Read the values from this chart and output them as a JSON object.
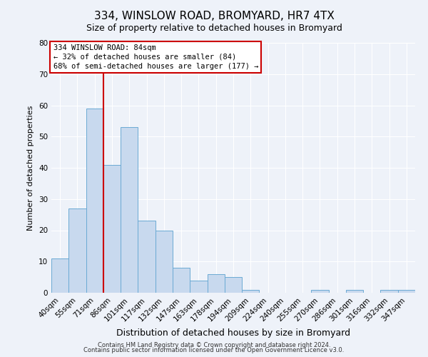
{
  "title": "334, WINSLOW ROAD, BROMYARD, HR7 4TX",
  "subtitle": "Size of property relative to detached houses in Bromyard",
  "xlabel": "Distribution of detached houses by size in Bromyard",
  "ylabel": "Number of detached properties",
  "bar_color": "#c8d9ee",
  "bar_edge_color": "#6baad4",
  "bin_labels": [
    "40sqm",
    "55sqm",
    "71sqm",
    "86sqm",
    "101sqm",
    "117sqm",
    "132sqm",
    "147sqm",
    "163sqm",
    "178sqm",
    "194sqm",
    "209sqm",
    "224sqm",
    "240sqm",
    "255sqm",
    "270sqm",
    "286sqm",
    "301sqm",
    "316sqm",
    "332sqm",
    "347sqm"
  ],
  "bar_heights": [
    11,
    27,
    59,
    41,
    53,
    23,
    20,
    8,
    4,
    6,
    5,
    1,
    0,
    0,
    0,
    1,
    0,
    1,
    0,
    1,
    1
  ],
  "vline_x_bin": 2,
  "vline_color": "#cc0000",
  "ylim": [
    0,
    80
  ],
  "yticks": [
    0,
    10,
    20,
    30,
    40,
    50,
    60,
    70,
    80
  ],
  "annotation_title": "334 WINSLOW ROAD: 84sqm",
  "annotation_line1": "← 32% of detached houses are smaller (84)",
  "annotation_line2": "68% of semi-detached houses are larger (177) →",
  "footer_line1": "Contains HM Land Registry data © Crown copyright and database right 2024.",
  "footer_line2": "Contains public sector information licensed under the Open Government Licence v3.0.",
  "background_color": "#eef2f9",
  "plot_bg_color": "#eef2f9",
  "grid_color": "#ffffff",
  "annotation_box_color": "#ffffff",
  "annotation_box_edge_color": "#cc0000",
  "title_fontsize": 11,
  "subtitle_fontsize": 9,
  "xlabel_fontsize": 9,
  "ylabel_fontsize": 8,
  "tick_fontsize": 7.5,
  "footer_fontsize": 6
}
